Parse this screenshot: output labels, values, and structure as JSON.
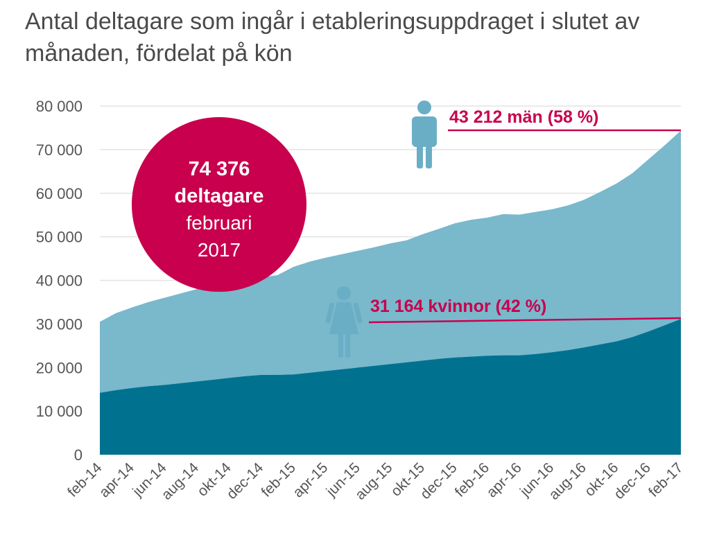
{
  "title": "Antal deltagare som ingår i etableringsuppdraget i slutet av månaden, fördelat på kön",
  "colors": {
    "men_area": "#7ab8cc",
    "women_area": "#00728f",
    "accent": "#c8004d",
    "grid": "#e3e3e3",
    "icon": "#6aaec6"
  },
  "badge": {
    "line1": "74 376",
    "line2": "deltagare",
    "line3": "februari",
    "line4": "2017"
  },
  "callouts": {
    "men": "43 212 män (58 %)",
    "women": "31 164 kvinnor (42 %)"
  },
  "icons": {
    "men": "man-icon",
    "women": "woman-icon"
  },
  "chart_data": {
    "type": "area",
    "stacked": true,
    "grid": true,
    "ylim": [
      0,
      80000
    ],
    "yticks": [
      0,
      10000,
      20000,
      30000,
      40000,
      50000,
      60000,
      70000,
      80000
    ],
    "ytick_labels": [
      "0",
      "10 000",
      "20 000",
      "30 000",
      "40 000",
      "50 000",
      "60 000",
      "70 000",
      "80 000"
    ],
    "x_tick_labels": [
      "feb-14",
      "apr-14",
      "jun-14",
      "aug-14",
      "okt-14",
      "dec-14",
      "feb-15",
      "apr-15",
      "jun-15",
      "aug-15",
      "okt-15",
      "dec-15",
      "feb-16",
      "apr-16",
      "jun-16",
      "aug-16",
      "okt-16",
      "dec-16",
      "feb-17"
    ],
    "x": [
      "feb-14",
      "mar-14",
      "apr-14",
      "maj-14",
      "jun-14",
      "jul-14",
      "aug-14",
      "sep-14",
      "okt-14",
      "nov-14",
      "dec-14",
      "jan-15",
      "feb-15",
      "mar-15",
      "apr-15",
      "maj-15",
      "jun-15",
      "jul-15",
      "aug-15",
      "sep-15",
      "okt-15",
      "nov-15",
      "dec-15",
      "jan-16",
      "feb-16",
      "mar-16",
      "apr-16",
      "maj-16",
      "jun-16",
      "jul-16",
      "aug-16",
      "sep-16",
      "okt-16",
      "nov-16",
      "dec-16",
      "jan-17",
      "feb-17"
    ],
    "series": [
      {
        "name": "kvinnor",
        "values": [
          14200,
          14800,
          15300,
          15700,
          16000,
          16400,
          16800,
          17200,
          17600,
          18000,
          18300,
          18300,
          18400,
          18800,
          19200,
          19600,
          20000,
          20400,
          20800,
          21200,
          21600,
          22000,
          22300,
          22500,
          22700,
          22800,
          22800,
          23100,
          23500,
          24000,
          24600,
          25300,
          26000,
          27000,
          28300,
          29700,
          31164
        ]
      },
      {
        "name": "män",
        "values": [
          16300,
          17700,
          18500,
          19300,
          20000,
          20600,
          21200,
          22000,
          22800,
          23500,
          22400,
          22900,
          24700,
          25500,
          26000,
          26400,
          26800,
          27200,
          27700,
          28000,
          29000,
          29800,
          30800,
          31400,
          31700,
          32400,
          32300,
          32600,
          32800,
          33200,
          33900,
          35000,
          36200,
          37600,
          39500,
          41300,
          43212
        ]
      }
    ]
  }
}
